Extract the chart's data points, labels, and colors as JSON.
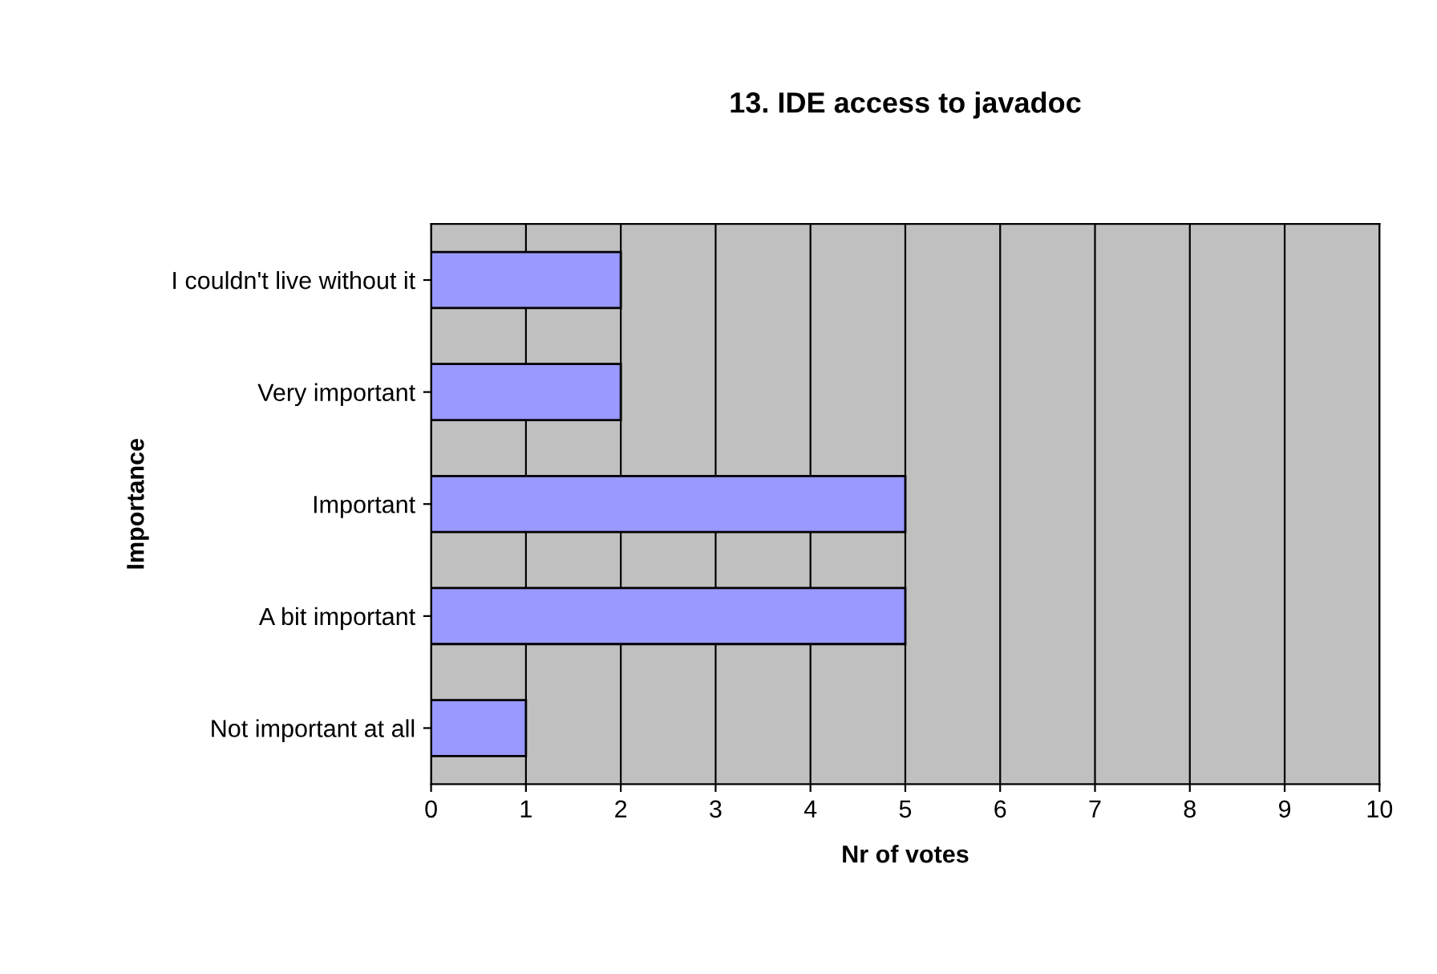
{
  "chart_data": {
    "type": "bar",
    "orientation": "horizontal",
    "title": "13. IDE access to javadoc",
    "xlabel": "Nr of votes",
    "ylabel": "Importance",
    "categories": [
      "I couldn't live without it",
      "Very important",
      "Important",
      "A bit important",
      "Not important at all"
    ],
    "values": [
      2,
      2,
      5,
      5,
      1
    ],
    "color": "#9999ff",
    "xlim": [
      0,
      10
    ],
    "xticks": [
      0,
      1,
      2,
      3,
      4,
      5,
      6,
      7,
      8,
      9,
      10
    ],
    "grid": "x",
    "legend": false
  }
}
